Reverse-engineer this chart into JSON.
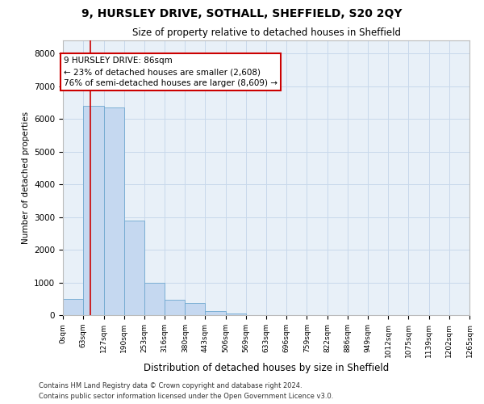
{
  "title_line1": "9, HURSLEY DRIVE, SOTHALL, SHEFFIELD, S20 2QY",
  "title_line2": "Size of property relative to detached houses in Sheffield",
  "xlabel": "Distribution of detached houses by size in Sheffield",
  "ylabel": "Number of detached properties",
  "bar_color": "#c5d8f0",
  "bar_edge_color": "#6fa8d0",
  "grid_color": "#c8d8eb",
  "background_color": "#e8f0f8",
  "bin_edges": [
    0,
    63,
    127,
    190,
    253,
    316,
    380,
    443,
    506,
    569,
    633,
    696,
    759,
    822,
    886,
    949,
    1012,
    1075,
    1139,
    1202,
    1265
  ],
  "bin_labels": [
    "0sqm",
    "63sqm",
    "127sqm",
    "190sqm",
    "253sqm",
    "316sqm",
    "380sqm",
    "443sqm",
    "506sqm",
    "569sqm",
    "633sqm",
    "696sqm",
    "759sqm",
    "822sqm",
    "886sqm",
    "949sqm",
    "1012sqm",
    "1075sqm",
    "1139sqm",
    "1202sqm",
    "1265sqm"
  ],
  "bar_heights": [
    500,
    6400,
    6350,
    2900,
    980,
    460,
    370,
    130,
    55,
    0,
    0,
    0,
    0,
    0,
    0,
    0,
    0,
    0,
    0,
    0
  ],
  "property_size": 86,
  "annotation_line1": "9 HURSLEY DRIVE: 86sqm",
  "annotation_line2": "← 23% of detached houses are smaller (2,608)",
  "annotation_line3": "76% of semi-detached houses are larger (8,609) →",
  "annotation_box_color": "#ffffff",
  "annotation_box_edge_color": "#cc0000",
  "vline_color": "#cc0000",
  "ylim": [
    0,
    8400
  ],
  "yticks": [
    0,
    1000,
    2000,
    3000,
    4000,
    5000,
    6000,
    7000,
    8000
  ],
  "footer_line1": "Contains HM Land Registry data © Crown copyright and database right 2024.",
  "footer_line2": "Contains public sector information licensed under the Open Government Licence v3.0."
}
